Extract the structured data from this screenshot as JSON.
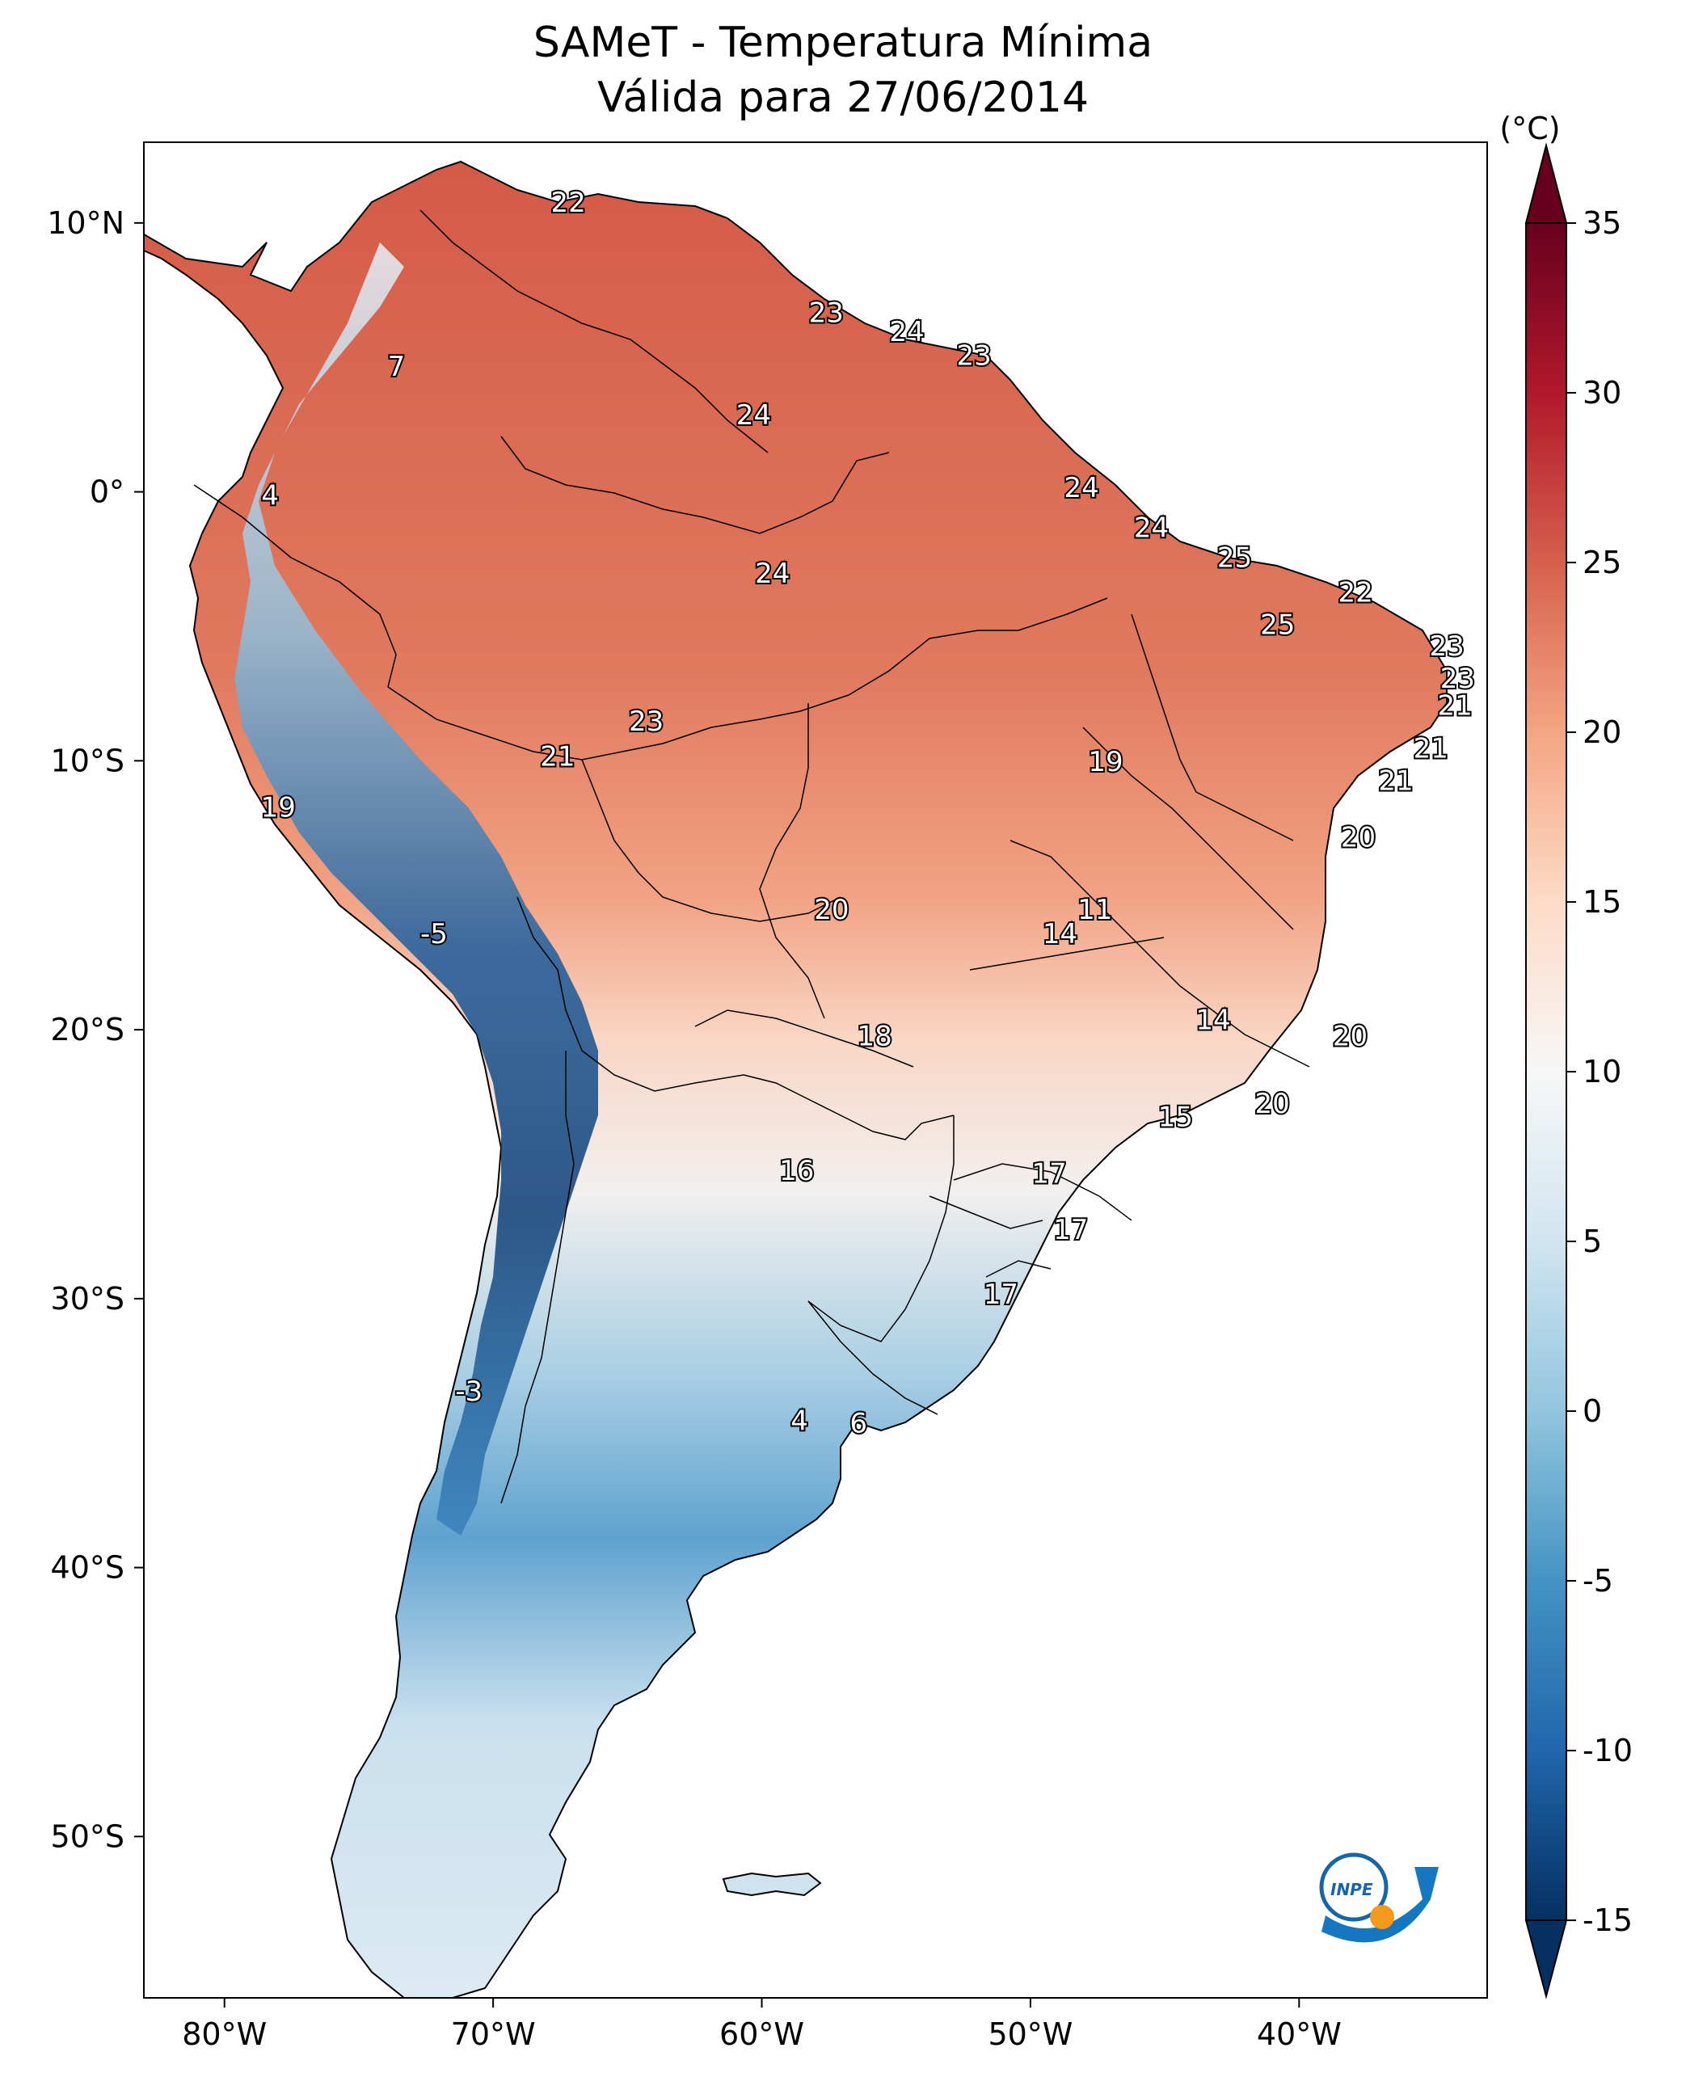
{
  "title": {
    "line1": "SAMeT - Temperatura Mínima",
    "line2": "Válida para 27/06/2014"
  },
  "map": {
    "lon_range": [
      -83,
      -33
    ],
    "lat_range": [
      -56,
      13
    ],
    "x_ticks": [
      {
        "lon": -80,
        "label": "80°W"
      },
      {
        "lon": -70,
        "label": "70°W"
      },
      {
        "lon": -60,
        "label": "60°W"
      },
      {
        "lon": -50,
        "label": "50°W"
      },
      {
        "lon": -40,
        "label": "40°W"
      }
    ],
    "y_ticks": [
      {
        "lat": 10,
        "label": "10°N"
      },
      {
        "lat": 0,
        "label": "0°"
      },
      {
        "lat": -10,
        "label": "10°S"
      },
      {
        "lat": -20,
        "label": "20°S"
      },
      {
        "lat": -30,
        "label": "30°S"
      },
      {
        "lat": -40,
        "label": "40°S"
      },
      {
        "lat": -50,
        "label": "50°S"
      }
    ],
    "temperature_labels": [
      {
        "lon": -67.2,
        "lat": 10.7,
        "value": "22"
      },
      {
        "lon": -73.6,
        "lat": 4.6,
        "value": "7"
      },
      {
        "lon": -57.6,
        "lat": 6.6,
        "value": "23"
      },
      {
        "lon": -54.6,
        "lat": 5.9,
        "value": "24"
      },
      {
        "lon": -52.1,
        "lat": 5.0,
        "value": "23"
      },
      {
        "lon": -60.3,
        "lat": 2.8,
        "value": "24"
      },
      {
        "lon": -78.3,
        "lat": -0.2,
        "value": "4"
      },
      {
        "lon": -48.1,
        "lat": 0.1,
        "value": "24"
      },
      {
        "lon": -45.5,
        "lat": -1.4,
        "value": "24"
      },
      {
        "lon": -59.6,
        "lat": -3.1,
        "value": "24"
      },
      {
        "lon": -42.4,
        "lat": -2.5,
        "value": "25"
      },
      {
        "lon": -37.9,
        "lat": -3.8,
        "value": "22"
      },
      {
        "lon": -40.8,
        "lat": -5.0,
        "value": "25"
      },
      {
        "lon": -34.5,
        "lat": -5.8,
        "value": "23"
      },
      {
        "lon": -34.1,
        "lat": -7.0,
        "value": "23"
      },
      {
        "lon": -34.2,
        "lat": -8.0,
        "value": "21"
      },
      {
        "lon": -64.3,
        "lat": -8.6,
        "value": "23"
      },
      {
        "lon": -67.6,
        "lat": -9.9,
        "value": "21"
      },
      {
        "lon": -35.1,
        "lat": -9.6,
        "value": "21"
      },
      {
        "lon": -47.2,
        "lat": -10.1,
        "value": "19"
      },
      {
        "lon": -36.4,
        "lat": -10.8,
        "value": "21"
      },
      {
        "lon": -78.0,
        "lat": -11.8,
        "value": "19"
      },
      {
        "lon": -37.8,
        "lat": -12.9,
        "value": "20"
      },
      {
        "lon": -57.4,
        "lat": -15.6,
        "value": "20"
      },
      {
        "lon": -72.2,
        "lat": -16.5,
        "value": "-5"
      },
      {
        "lon": -47.6,
        "lat": -15.6,
        "value": "11"
      },
      {
        "lon": -48.9,
        "lat": -16.5,
        "value": "14"
      },
      {
        "lon": -43.2,
        "lat": -19.7,
        "value": "14"
      },
      {
        "lon": -38.1,
        "lat": -20.3,
        "value": "20"
      },
      {
        "lon": -55.8,
        "lat": -20.3,
        "value": "18"
      },
      {
        "lon": -41.0,
        "lat": -22.8,
        "value": "20"
      },
      {
        "lon": -44.6,
        "lat": -23.3,
        "value": "15"
      },
      {
        "lon": -58.7,
        "lat": -25.3,
        "value": "16"
      },
      {
        "lon": -49.3,
        "lat": -25.4,
        "value": "17"
      },
      {
        "lon": -48.5,
        "lat": -27.5,
        "value": "17"
      },
      {
        "lon": -51.1,
        "lat": -29.9,
        "value": "17"
      },
      {
        "lon": -70.9,
        "lat": -33.5,
        "value": "-3"
      },
      {
        "lon": -58.6,
        "lat": -34.6,
        "value": "4"
      },
      {
        "lon": -56.4,
        "lat": -34.7,
        "value": "6"
      }
    ]
  },
  "colorbar": {
    "unit": "(°C)",
    "min": -15,
    "max": 35,
    "ticks": [
      {
        "value": 35,
        "label": "35"
      },
      {
        "value": 30,
        "label": "30"
      },
      {
        "value": 25,
        "label": "25"
      },
      {
        "value": 20,
        "label": "20"
      },
      {
        "value": 15,
        "label": "15"
      },
      {
        "value": 10,
        "label": "10"
      },
      {
        "value": 5,
        "label": "5"
      },
      {
        "value": 0,
        "label": "0"
      },
      {
        "value": -5,
        "label": "-5"
      },
      {
        "value": -10,
        "label": "-10"
      },
      {
        "value": -15,
        "label": "-15"
      }
    ],
    "colors": {
      "deep_red": "#67001f",
      "red": "#b2182b",
      "orange_red": "#d6604d",
      "salmon": "#f4a582",
      "peach": "#fddbc7",
      "white": "#f7f7f7",
      "light_blue": "#d1e5f0",
      "sky": "#92c5de",
      "blue": "#4393c3",
      "dark_blue": "#2166ac",
      "navy": "#053061"
    }
  },
  "logo": {
    "text": "INPE"
  }
}
